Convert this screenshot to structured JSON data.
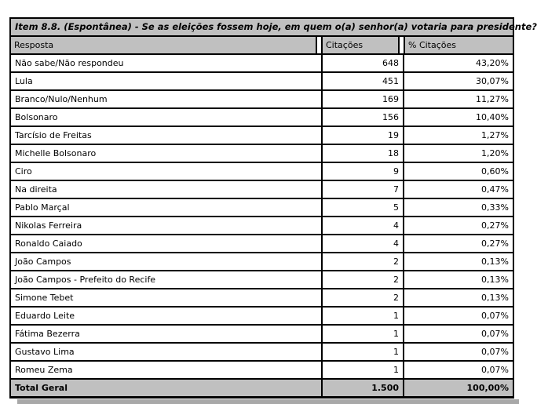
{
  "chart_data": {
    "type": "table",
    "title": "Item 8.8. (Espontânea) - Se as eleições fossem hoje, em quem o(a) senhor(a) votaria para presidente?",
    "columns": [
      "Resposta",
      "Citações",
      "% Citações"
    ],
    "rows": [
      {
        "label": "Não sabe/Não respondeu",
        "citations": 648,
        "pct": "43,20%"
      },
      {
        "label": "Lula",
        "citations": 451,
        "pct": "30,07%"
      },
      {
        "label": "Branco/Nulo/Nenhum",
        "citations": 169,
        "pct": "11,27%"
      },
      {
        "label": "Bolsonaro",
        "citations": 156,
        "pct": "10,40%"
      },
      {
        "label": "Tarcísio de Freitas",
        "citations": 19,
        "pct": "1,27%"
      },
      {
        "label": "Michelle Bolsonaro",
        "citations": 18,
        "pct": "1,20%"
      },
      {
        "label": "Ciro",
        "citations": 9,
        "pct": "0,60%"
      },
      {
        "label": "Na direita",
        "citations": 7,
        "pct": "0,47%"
      },
      {
        "label": "Pablo Marçal",
        "citations": 5,
        "pct": "0,33%"
      },
      {
        "label": "Nikolas Ferreira",
        "citations": 4,
        "pct": "0,27%"
      },
      {
        "label": "Ronaldo Caiado",
        "citations": 4,
        "pct": "0,27%"
      },
      {
        "label": "João Campos",
        "citations": 2,
        "pct": "0,13%"
      },
      {
        "label": "João Campos - Prefeito do Recife",
        "citations": 2,
        "pct": "0,13%"
      },
      {
        "label": "Simone Tebet",
        "citations": 2,
        "pct": "0,13%"
      },
      {
        "label": "Eduardo Leite",
        "citations": 1,
        "pct": "0,07%"
      },
      {
        "label": "Fátima Bezerra",
        "citations": 1,
        "pct": "0,07%"
      },
      {
        "label": "Gustavo Lima",
        "citations": 1,
        "pct": "0,07%"
      },
      {
        "label": "Romeu Zema",
        "citations": 1,
        "pct": "0,07%"
      }
    ],
    "total": {
      "label": "Total Geral",
      "citations": "1.500",
      "pct": "100,00%"
    },
    "layout": {
      "grid": "bordered-table",
      "header_position": "top",
      "legend": "none"
    }
  },
  "colors": {
    "header_bg": "#c0c0c0",
    "total_bg": "#c0c0c0",
    "row_bg": "#ffffff",
    "border": "#000000",
    "shadow": "#a8a8a8"
  }
}
